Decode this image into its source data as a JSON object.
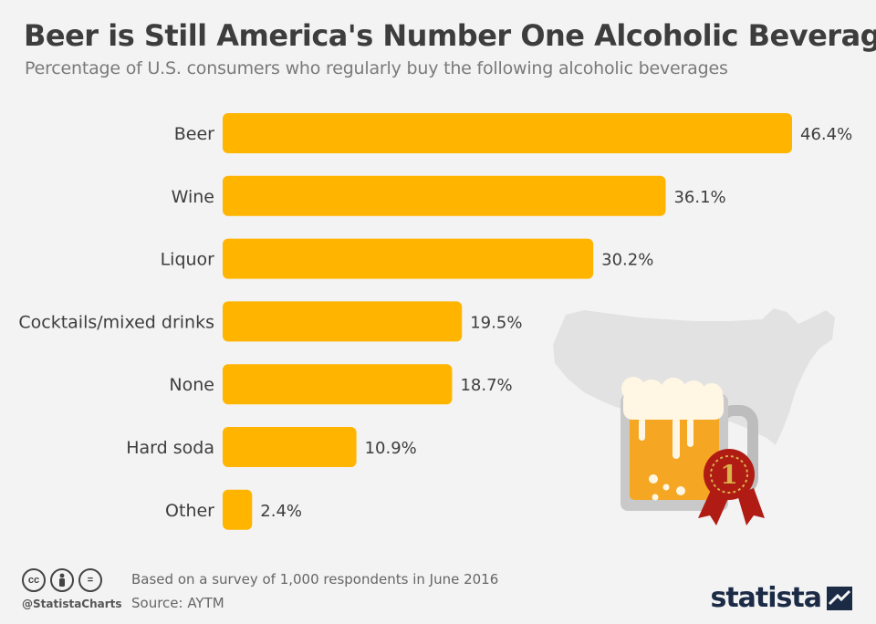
{
  "chart_data": {
    "type": "bar",
    "orientation": "horizontal",
    "title": "Beer is Still America's Number One Alcoholic Beverage",
    "subtitle": "Percentage of U.S. consumers who regularly buy the following alcoholic beverages",
    "categories": [
      "Beer",
      "Wine",
      "Liquor",
      "Cocktails/mixed drinks",
      "None",
      "Hard soda",
      "Other"
    ],
    "values": [
      46.4,
      36.1,
      30.2,
      19.5,
      18.7,
      10.9,
      2.4
    ],
    "value_labels": [
      "46.4%",
      "36.1%",
      "30.2%",
      "19.5%",
      "18.7%",
      "10.9%",
      "2.4%"
    ],
    "unit": "%",
    "grid": false,
    "bar_color": "#ffb400"
  },
  "footer": {
    "note": "Based on a survey of 1,000 respondents in June 2016",
    "source": "Source: AYTM",
    "handle": "@StatistaCharts",
    "cc_icons": [
      "cc",
      "by",
      "="
    ],
    "brand": "statista"
  },
  "illustration": {
    "icons": [
      "usa-map-icon",
      "beer-mug-icon",
      "award-ribbon-icon"
    ],
    "badge_number": "1"
  },
  "colors": {
    "background": "#f3f3f3",
    "bar": "#ffb400",
    "text": "#3d3d3d",
    "map": "#e2e2e2",
    "ribbon": "#b01c14",
    "brand": "#1b2b46"
  }
}
